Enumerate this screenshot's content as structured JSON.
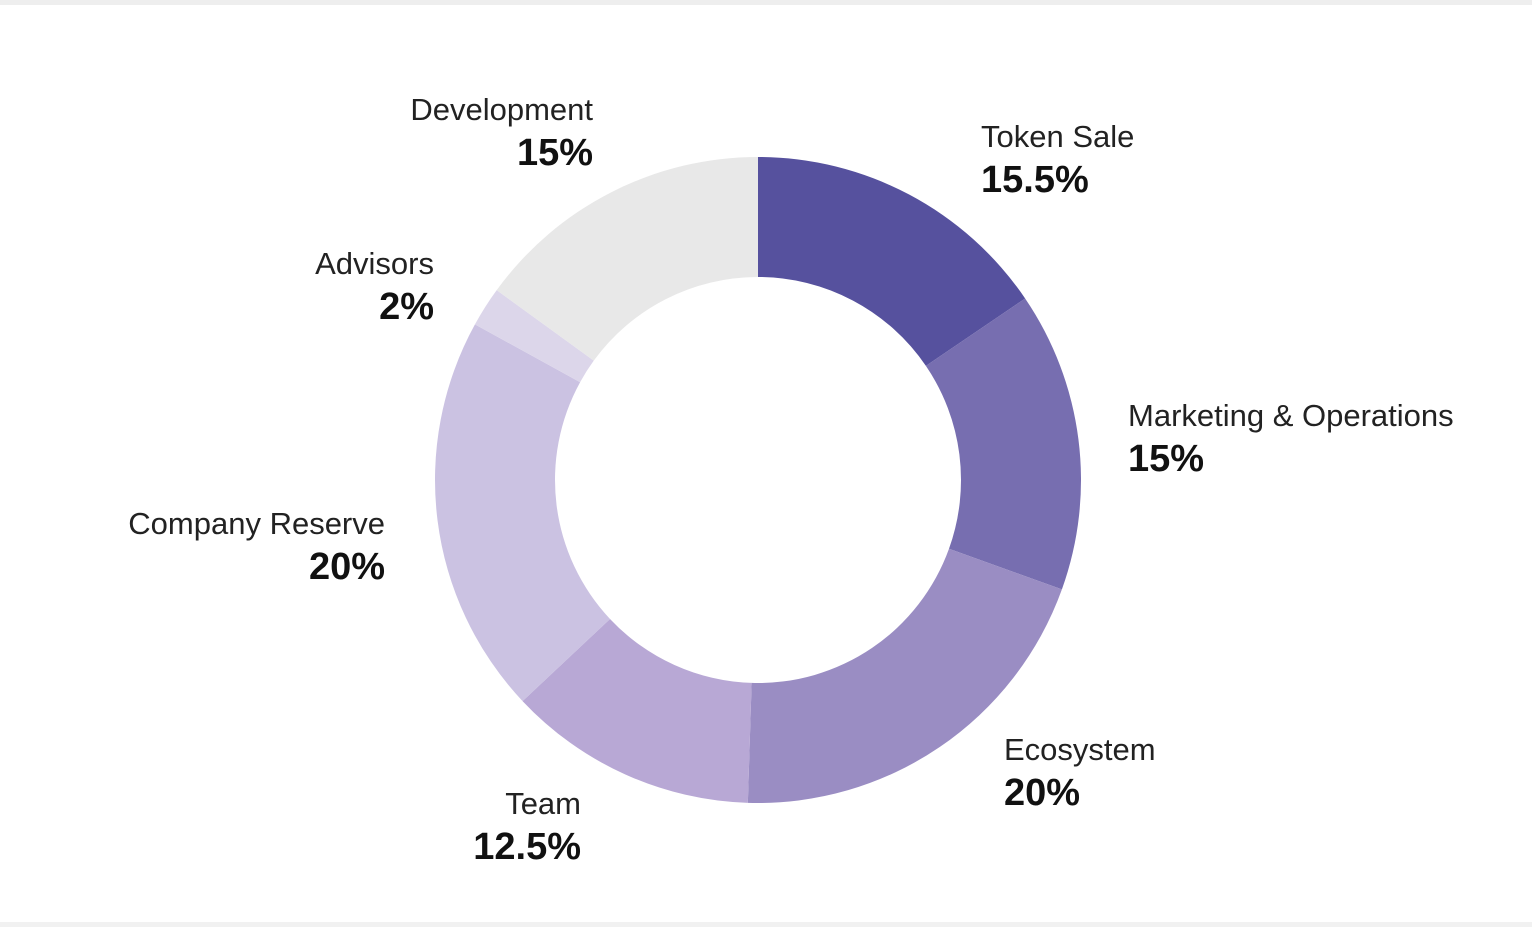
{
  "chart_data": {
    "type": "pie",
    "donut": true,
    "start_angle_deg": 0,
    "direction": "clockwise",
    "slices": [
      {
        "label": "Token Sale",
        "value": 15.5,
        "value_text": "15.5%",
        "color": "#56519e"
      },
      {
        "label": "Marketing & Operations",
        "value": 15,
        "value_text": "15%",
        "color": "#776eb0"
      },
      {
        "label": "Ecosystem",
        "value": 20,
        "value_text": "20%",
        "color": "#9a8dc3"
      },
      {
        "label": "Team",
        "value": 12.5,
        "value_text": "12.5%",
        "color": "#b8a8d5"
      },
      {
        "label": "Company Reserve",
        "value": 20,
        "value_text": "20%",
        "color": "#cbc2e2"
      },
      {
        "label": "Advisors",
        "value": 2,
        "value_text": "2%",
        "color": "#dcd6ea"
      },
      {
        "label": "Development",
        "value": 15,
        "value_text": "15%",
        "color": "#e8e8e8"
      }
    ]
  }
}
